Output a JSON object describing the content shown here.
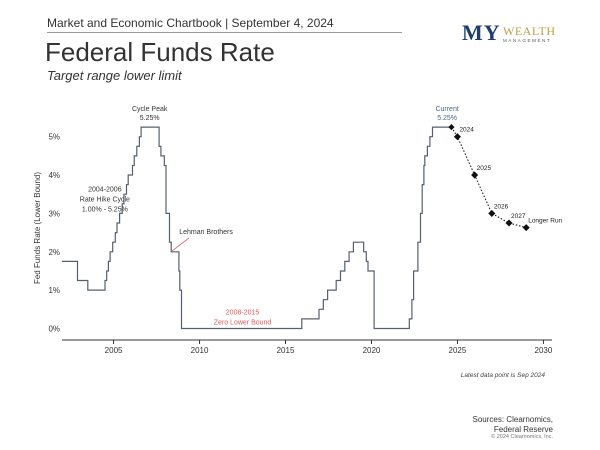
{
  "header": {
    "chartbook_line": "Market and Economic Chartbook | September 4, 2024"
  },
  "logo": {
    "my": "MY",
    "wealth": "WEALTH",
    "management": "MANAGEMENT"
  },
  "chart_data": {
    "type": "line",
    "title": "Federal Funds Rate",
    "subtitle": "Target range lower limit",
    "ylabel": "Fed Funds Rate (Lower Bound)",
    "xlabel": "",
    "xlim": [
      2002,
      2030.5
    ],
    "ylim": [
      -0.3,
      5.8
    ],
    "x_ticks": [
      2005,
      2010,
      2015,
      2020,
      2025,
      2030
    ],
    "y_ticks": [
      {
        "value": 0,
        "label": "0%"
      },
      {
        "value": 1,
        "label": "1%"
      },
      {
        "value": 2,
        "label": "2%"
      },
      {
        "value": 3,
        "label": "3%"
      },
      {
        "value": 4,
        "label": "4%"
      },
      {
        "value": 5,
        "label": "5%"
      }
    ],
    "grid": false,
    "series": [
      {
        "style": "step",
        "color": "#55606e",
        "points": [
          [
            2002.0,
            1.75
          ],
          [
            2002.9,
            1.25
          ],
          [
            2003.5,
            1.0
          ],
          [
            2004.5,
            1.25
          ],
          [
            2004.6,
            1.5
          ],
          [
            2004.7,
            1.75
          ],
          [
            2004.8,
            2.0
          ],
          [
            2004.95,
            2.25
          ],
          [
            2005.1,
            2.5
          ],
          [
            2005.2,
            2.75
          ],
          [
            2005.35,
            3.0
          ],
          [
            2005.5,
            3.25
          ],
          [
            2005.6,
            3.5
          ],
          [
            2005.75,
            3.75
          ],
          [
            2005.85,
            4.0
          ],
          [
            2006.1,
            4.25
          ],
          [
            2006.2,
            4.5
          ],
          [
            2006.35,
            4.75
          ],
          [
            2006.5,
            5.0
          ],
          [
            2006.6,
            5.25
          ],
          [
            2007.65,
            4.75
          ],
          [
            2007.75,
            4.5
          ],
          [
            2007.95,
            4.25
          ],
          [
            2008.05,
            3.0
          ],
          [
            2008.25,
            2.25
          ],
          [
            2008.35,
            2.0
          ],
          [
            2008.8,
            1.5
          ],
          [
            2008.85,
            1.0
          ],
          [
            2008.95,
            0.0
          ],
          [
            2015.95,
            0.25
          ],
          [
            2016.95,
            0.5
          ],
          [
            2017.2,
            0.75
          ],
          [
            2017.45,
            1.0
          ],
          [
            2017.95,
            1.25
          ],
          [
            2018.2,
            1.5
          ],
          [
            2018.45,
            1.75
          ],
          [
            2018.7,
            2.0
          ],
          [
            2018.95,
            2.25
          ],
          [
            2019.55,
            2.0
          ],
          [
            2019.7,
            1.75
          ],
          [
            2019.8,
            1.5
          ],
          [
            2020.15,
            0.0
          ],
          [
            2022.2,
            0.25
          ],
          [
            2022.35,
            0.75
          ],
          [
            2022.45,
            1.5
          ],
          [
            2022.7,
            2.25
          ],
          [
            2022.85,
            3.0
          ],
          [
            2022.95,
            3.75
          ],
          [
            2023.05,
            4.25
          ],
          [
            2023.1,
            4.5
          ],
          [
            2023.25,
            4.75
          ],
          [
            2023.4,
            5.0
          ],
          [
            2023.55,
            5.25
          ],
          [
            2024.65,
            5.25
          ]
        ]
      },
      {
        "name": "Projection",
        "style": "dotted",
        "color": "#222222",
        "points": [
          [
            2024.65,
            5.25
          ],
          [
            2025.0,
            5.0
          ],
          [
            2026.0,
            4.0
          ],
          [
            2027.0,
            3.0
          ],
          [
            2028.0,
            2.75
          ],
          [
            2029.0,
            2.63
          ]
        ],
        "point_labels": [
          "",
          "2024",
          "2025",
          "2026",
          "2027",
          "Longer Run"
        ]
      }
    ],
    "annotations": [
      {
        "text": "Cycle Peak",
        "subtext": "5.25%",
        "x": 2007.1,
        "y": 5.25,
        "color": "#333333"
      },
      {
        "text": "Current",
        "subtext": "5.25%",
        "x": 2024.4,
        "y": 5.25,
        "color": "#4a6a8a"
      },
      {
        "text": "2004-2006",
        "subtext": "Rate Hike Cycle",
        "subtext2": "1.00% - 5.25%",
        "x": 2004.9,
        "y": 3.0,
        "color": "#333333"
      },
      {
        "text": "Lehman Brothers",
        "x": 2008.7,
        "y": 2.0,
        "color": "#333333"
      },
      {
        "text": "2008-2015",
        "subtext": "Zero Lower Bound",
        "x": 2012.5,
        "y": 0.0,
        "color": "#e05a5a"
      }
    ]
  },
  "footer": {
    "data_note": "Latest data point is Sep 2024",
    "sources_line1": "Sources: Clearnomics,",
    "sources_line2": "Federal Reserve",
    "copyright": "© 2024 Clearnomics, Inc."
  }
}
